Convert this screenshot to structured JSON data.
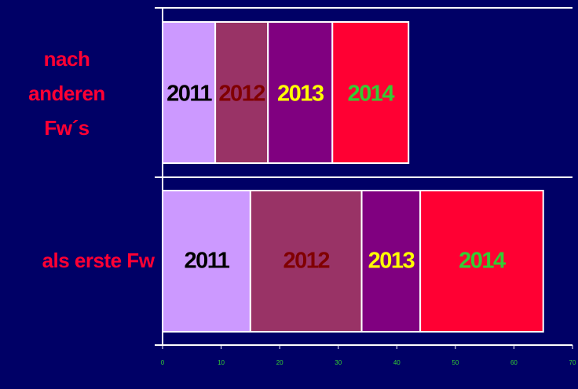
{
  "chart_data": {
    "type": "stacked-barh",
    "categories": [
      "nach anderen Fw´s",
      "als erste Fw"
    ],
    "series": [
      {
        "name": "2011",
        "color": "#cc99ff",
        "label_color": "#000000",
        "values": [
          9,
          15
        ]
      },
      {
        "name": "2012",
        "color": "#993366",
        "label_color": "#800000",
        "values": [
          9,
          19
        ]
      },
      {
        "name": "2013",
        "color": "#800080",
        "label_color": "#ffff00",
        "values": [
          11,
          10
        ]
      },
      {
        "name": "2014",
        "color": "#ff0033",
        "label_color": "#33cc33",
        "values": [
          13,
          21
        ]
      }
    ],
    "xlim": [
      0,
      70
    ],
    "xticks": [
      0,
      10,
      20,
      30,
      40,
      50,
      60,
      70
    ]
  }
}
